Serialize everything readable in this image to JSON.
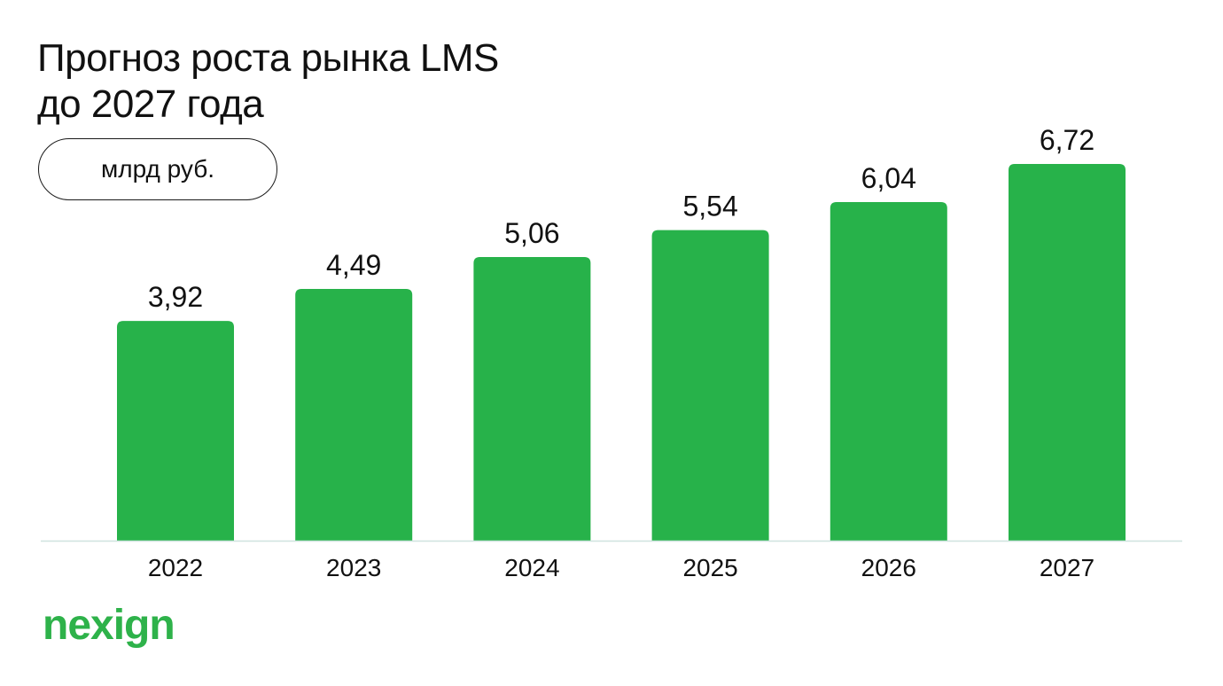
{
  "title_lines": [
    "Прогноз роста рынка LMS",
    "до 2027 года"
  ],
  "unit_label": "млрд руб.",
  "brand": "nexign",
  "colors": {
    "bar": "#27b24a",
    "axis": "#cfe3df",
    "brand": "#2eb24a",
    "text": "#111111"
  },
  "chart_data": {
    "type": "bar",
    "title": "Прогноз роста рынка LMS до 2027 года",
    "categories": [
      "2022",
      "2023",
      "2024",
      "2025",
      "2026",
      "2027"
    ],
    "values": [
      3.92,
      4.49,
      5.06,
      5.54,
      6.04,
      6.72
    ],
    "value_labels": [
      "3,92",
      "4,49",
      "5,06",
      "5,54",
      "6,04",
      "6,72"
    ],
    "ylabel": "млрд руб.",
    "ylim": [
      0,
      6.72
    ],
    "grid": false,
    "legend": "none"
  }
}
